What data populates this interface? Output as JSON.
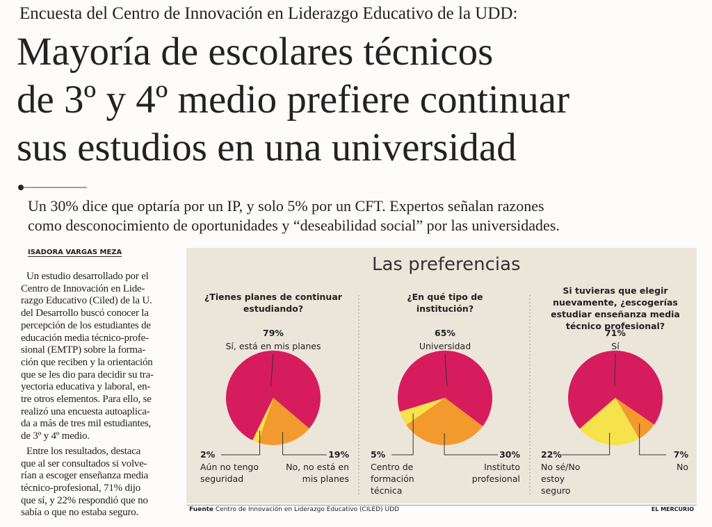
{
  "header": {
    "kicker": "Encuesta del Centro de Innovación en Liderazgo Educativo de la UDD:",
    "title": [
      "Mayoría de escolares técnicos",
      "de 3º y 4º medio prefiere continuar",
      "sus estudios en una universidad"
    ],
    "subtitle": [
      "Un 30% dice que optaría por un IP, y solo 5% por un CFT. Expertos señalan razones",
      "como desconocimiento de oportunidades y “deseabilidad social” por las universidades."
    ]
  },
  "byline": "ISADORA VARGAS MEZA",
  "body": [
    [
      "Un estudio desarrollado por el",
      "Centro de Innovación en Lide-",
      "razgo Educativo (Ciled) de la U.",
      "del Desarrollo buscó conocer la",
      "percepción de los estudiantes de",
      "educación media técnico-profe-",
      "sional (EMTP) sobre la forma-",
      "ción que reciben y la orientación",
      "que se les dio para decidir su tra-",
      "yectoria educativa y laboral, en-",
      "tre otros elementos. Para ello, se",
      "realizó una encuesta autoaplica-",
      "da a más de tres mil estudiantes,",
      "de 3º y 4º medio."
    ],
    [
      "Entre los resultados, destaca",
      "que al ser consultados si volve-",
      "rían a escoger enseñanza media",
      "técnico-profesional, 71% dijo",
      "que sí, y 22% respondió que no",
      "sabía o que no estaba seguro."
    ]
  ],
  "infographic": {
    "title": "Las preferencias",
    "source_label": "Fuente",
    "source": "Centro de Innovación en Liderazgo Educativo (CILED) UDD",
    "credit": "EL MERCURIO"
  },
  "chart_data": [
    {
      "type": "pie",
      "title": "¿Tienes planes de continuar estudiando?",
      "categories": [
        "Sí, está en mis planes",
        "No, no está en mis planes",
        "Aún no tengo seguridad"
      ],
      "values": [
        79,
        19,
        2
      ],
      "value_labels": [
        "79%",
        "19%",
        "2%"
      ],
      "colors": [
        "#d61c5c",
        "#f39a2f",
        "#f6e24a"
      ]
    },
    {
      "type": "pie",
      "title": "¿En qué tipo de institución?",
      "categories": [
        "Universidad",
        "Instituto profesional",
        "Centro de formación técnica"
      ],
      "values": [
        65,
        30,
        5
      ],
      "value_labels": [
        "65%",
        "30%",
        "5%"
      ],
      "colors": [
        "#d61c5c",
        "#f39a2f",
        "#f6e24a"
      ]
    },
    {
      "type": "pie",
      "title": "Si tuvieras que elegir nuevamente, ¿escogerías estudiar enseñanza media técnico profesional?",
      "categories": [
        "Sí",
        "No",
        "No sé/No estoy seguro"
      ],
      "values": [
        71,
        7,
        22
      ],
      "value_labels": [
        "71%",
        "7%",
        "22%"
      ],
      "colors": [
        "#d61c5c",
        "#f39a2f",
        "#f6e24a"
      ]
    }
  ]
}
